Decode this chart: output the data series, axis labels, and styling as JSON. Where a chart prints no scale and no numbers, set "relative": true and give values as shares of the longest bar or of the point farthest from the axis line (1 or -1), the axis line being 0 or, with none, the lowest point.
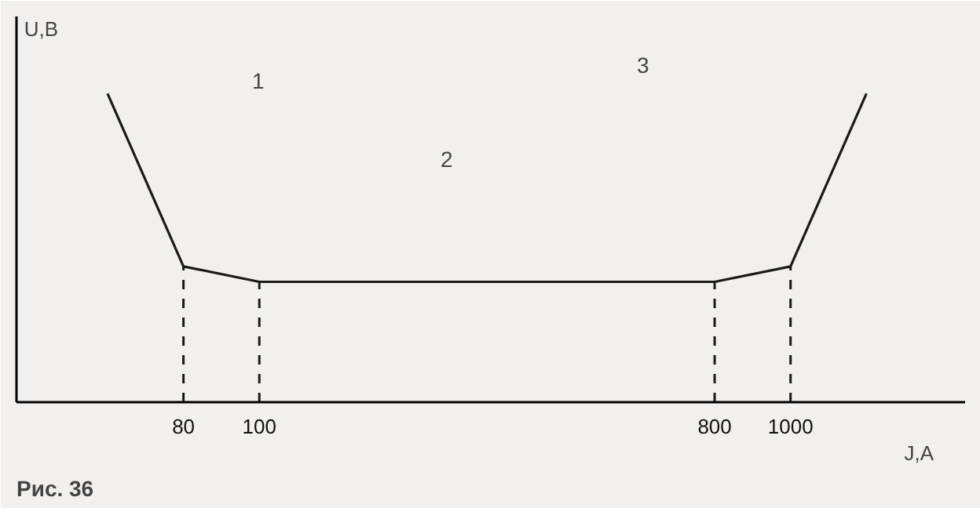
{
  "chart_data": {
    "type": "line",
    "relative": true,
    "xlabel": "J,A",
    "ylabel": "U,B",
    "categories": [
      null,
      "80",
      "100",
      null,
      null,
      null,
      null,
      null,
      "800",
      "1000",
      null
    ],
    "series": [
      {
        "color": "#1a1a1a",
        "values": [
          1,
          0.44,
          0.39,
          0.39,
          0.39,
          0.39,
          0.39,
          0.39,
          0.39,
          0.44,
          1
        ]
      }
    ],
    "ref_lines": [
      {
        "axis": "x",
        "value": "80",
        "line_style": "dashed"
      },
      {
        "axis": "x",
        "value": "100",
        "line_style": "dashed"
      },
      {
        "axis": "x",
        "value": "800",
        "line_style": "dashed"
      },
      {
        "axis": "x",
        "value": "1000",
        "line_style": "dashed"
      }
    ],
    "annotations": [
      "1",
      "2",
      "3",
      "Рис. 36"
    ],
    "tick_labels": "x",
    "grid": false,
    "marker": "none",
    "line_style": "solid"
  }
}
